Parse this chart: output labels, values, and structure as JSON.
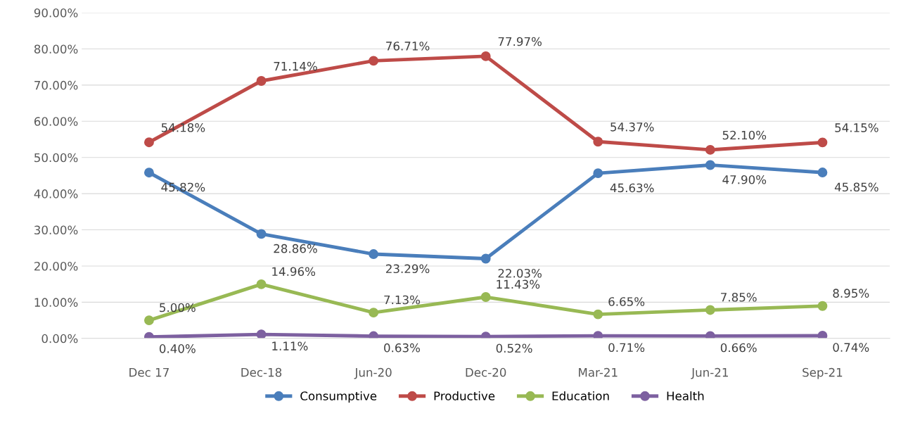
{
  "chart_data": {
    "type": "line",
    "categories": [
      "Dec 17",
      "Dec-18",
      "Jun-20",
      "Dec-20",
      "Mar-21",
      "Jun-21",
      "Sep-21"
    ],
    "ylim": [
      0,
      90
    ],
    "yticks": [
      {
        "value": 0,
        "label": "0.00%"
      },
      {
        "value": 10,
        "label": "10.00%"
      },
      {
        "value": 20,
        "label": "20.00%"
      },
      {
        "value": 30,
        "label": "30.00%"
      },
      {
        "value": 40,
        "label": "40.00%"
      },
      {
        "value": 50,
        "label": "50.00%"
      },
      {
        "value": 60,
        "label": "60.00%"
      },
      {
        "value": 70,
        "label": "70.00%"
      },
      {
        "value": 80,
        "label": "80.00%"
      },
      {
        "value": 90,
        "label": "90.00%"
      }
    ],
    "grid": "y",
    "legend": "bottom",
    "marker": "circle",
    "line_style": "solid",
    "series": [
      {
        "name": "Consumptive",
        "color": "#4a7ebb",
        "values": [
          45.82,
          28.86,
          23.29,
          22.03,
          45.63,
          47.9,
          45.85
        ],
        "value_labels": [
          "45.82%",
          "28.86%",
          "23.29%",
          "22.03%",
          "45.63%",
          "47.90%",
          "45.85%"
        ]
      },
      {
        "name": "Productive",
        "color": "#be4b48",
        "values": [
          54.18,
          71.14,
          76.71,
          77.97,
          54.37,
          52.1,
          54.15
        ],
        "value_labels": [
          "54.18%",
          "71.14%",
          "76.71%",
          "77.97%",
          "54.37%",
          "52.10%",
          "54.15%"
        ]
      },
      {
        "name": "Education",
        "color": "#98b954",
        "values": [
          5.0,
          14.96,
          7.13,
          11.43,
          6.65,
          7.85,
          8.95
        ],
        "value_labels": [
          "5.00%",
          "14.96%",
          "7.13%",
          "11.43%",
          "6.65%",
          "7.85%",
          "8.95%"
        ]
      },
      {
        "name": "Health",
        "color": "#7d60a0",
        "values": [
          0.4,
          1.11,
          0.63,
          0.52,
          0.71,
          0.66,
          0.74
        ],
        "value_labels": [
          "0.40%",
          "1.11%",
          "0.63%",
          "0.52%",
          "0.71%",
          "0.66%",
          "0.74%"
        ]
      }
    ]
  }
}
